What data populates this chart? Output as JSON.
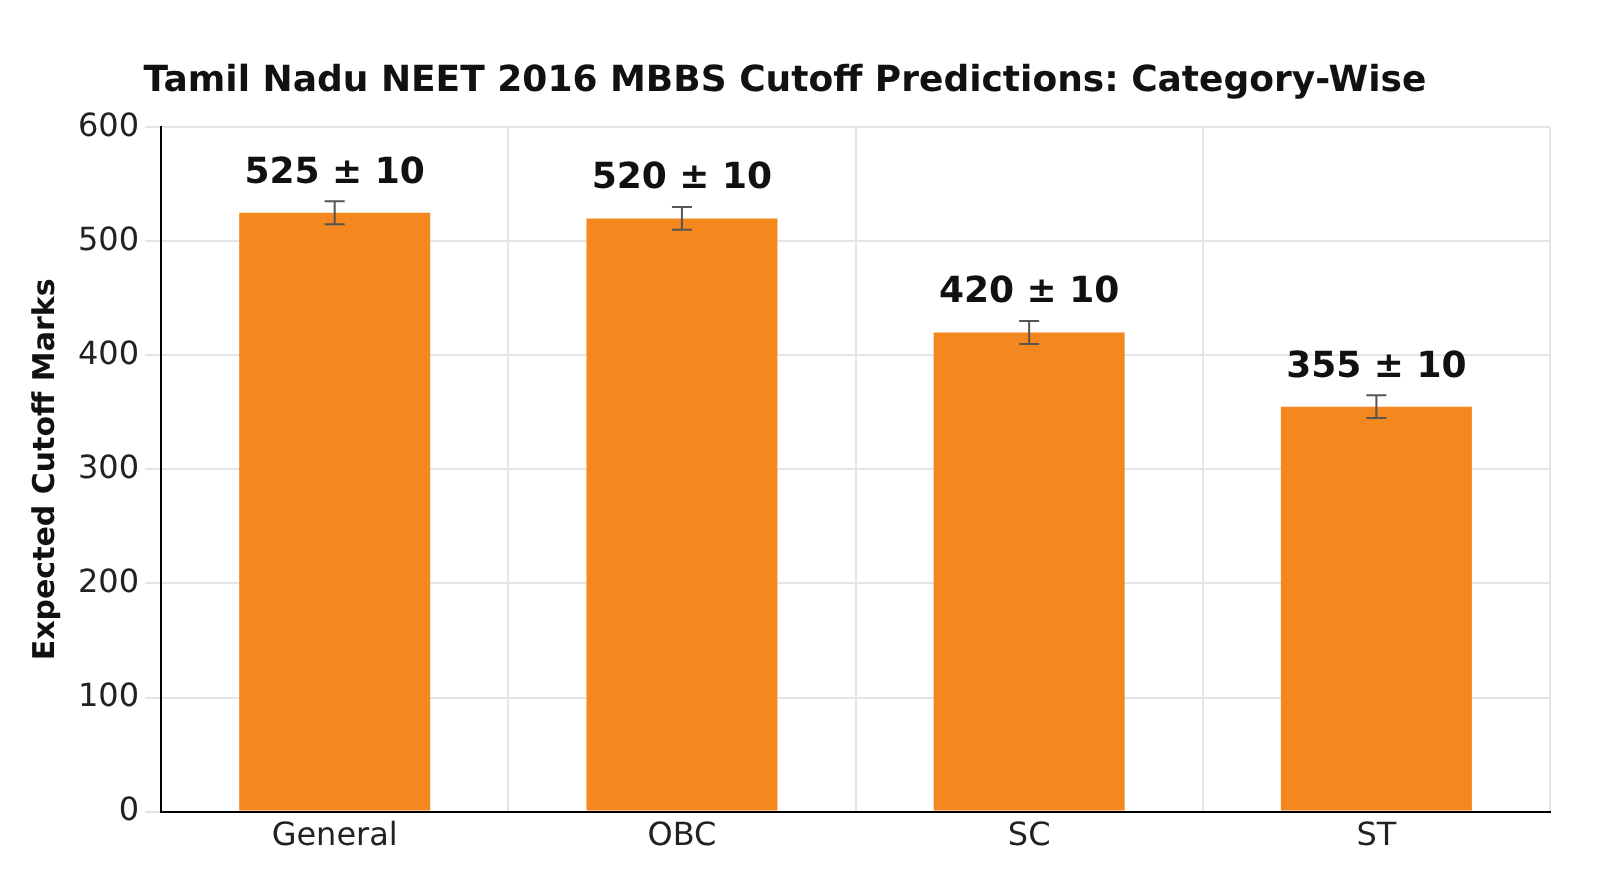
{
  "chart_data": {
    "type": "bar",
    "title": "Tamil Nadu NEET 2016 MBBS Cutoff Predictions: Category-Wise",
    "ylabel": "Expected Cutoff Marks",
    "categories": [
      "General",
      "OBC",
      "SC",
      "ST"
    ],
    "values": [
      525,
      520,
      420,
      355
    ],
    "errors": [
      10,
      10,
      10,
      10
    ],
    "value_labels": [
      "525 ± 10",
      "520 ± 10",
      "420 ± 10",
      "355 ± 10"
    ],
    "color": "#f5871f",
    "ylim": [
      0,
      600
    ],
    "yticks": [
      0,
      100,
      200,
      300,
      400,
      500,
      600
    ],
    "grid": true,
    "legend": false
  }
}
